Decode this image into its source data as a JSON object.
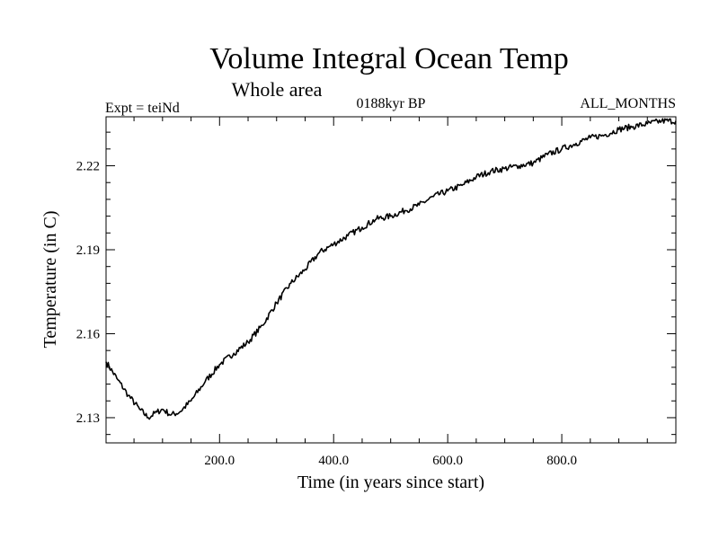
{
  "chart_data": {
    "type": "line",
    "title": "Volume Integral Ocean Temp",
    "subtitle": "Whole area",
    "header_left": "Expt = teiNd",
    "header_center": "0188kyr BP",
    "header_right": "ALL_MONTHS",
    "xlabel": "Time (in years since start)",
    "ylabel": "Temperature (in C)",
    "xlim": [
      1,
      1000
    ],
    "ylim": [
      2.121,
      2.2375
    ],
    "x_ticks": [
      200,
      400,
      600,
      800
    ],
    "x_tick_labels": [
      "200.0",
      "400.0",
      "600.0",
      "800.0"
    ],
    "y_ticks": [
      2.13,
      2.16,
      2.19,
      2.22
    ],
    "y_tick_labels": [
      "2.13",
      "2.16",
      "2.19",
      "2.22"
    ],
    "grid": false,
    "series": [
      {
        "name": "Volume Integral Ocean Temp",
        "x": [
          1,
          20,
          40,
          60,
          75,
          90,
          100,
          115,
          130,
          150,
          175,
          200,
          225,
          250,
          275,
          300,
          325,
          350,
          375,
          400,
          425,
          450,
          475,
          500,
          525,
          550,
          575,
          600,
          625,
          650,
          675,
          700,
          725,
          750,
          775,
          800,
          825,
          850,
          875,
          900,
          925,
          950,
          975,
          1000
        ],
        "values": [
          2.15,
          2.144,
          2.138,
          2.133,
          2.13,
          2.132,
          2.133,
          2.131,
          2.132,
          2.136,
          2.143,
          2.149,
          2.153,
          2.157,
          2.163,
          2.171,
          2.178,
          2.183,
          2.189,
          2.192,
          2.195,
          2.198,
          2.201,
          2.202,
          2.204,
          2.206,
          2.209,
          2.211,
          2.213,
          2.216,
          2.218,
          2.219,
          2.22,
          2.221,
          2.224,
          2.226,
          2.228,
          2.23,
          2.231,
          2.233,
          2.234,
          2.235,
          2.236,
          2.236
        ]
      }
    ]
  }
}
